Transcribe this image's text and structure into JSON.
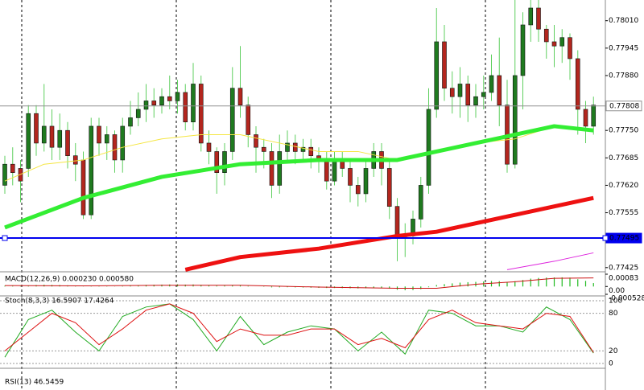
{
  "chart_data": [
    {
      "type": "candlestick",
      "bull_color": "#1f7a1f",
      "bear_color": "#b3261e",
      "wick_color": "#5fcf5f",
      "open": [
        0.7762,
        0.7767,
        0.7766,
        0.7766,
        0.7779,
        0.7772,
        0.7776,
        0.7771,
        0.7775,
        0.7769,
        0.7768,
        0.7755,
        0.7776,
        0.7772,
        0.7774,
        0.7768,
        0.7776,
        0.7778,
        0.778,
        0.7782,
        0.7781,
        0.7783,
        0.7782,
        0.7784,
        0.7777,
        0.7786,
        0.7772,
        0.777,
        0.7765,
        0.777,
        0.7785,
        0.7781,
        0.7774,
        0.7771,
        0.777,
        0.7762,
        0.777,
        0.7772,
        0.777,
        0.7771,
        0.7769,
        0.7768,
        0.7763,
        0.7768,
        0.7766,
        0.7762,
        0.776,
        0.7766,
        0.777,
        0.7766,
        0.7757,
        0.775,
        0.775,
        0.7754,
        0.7762,
        0.778,
        0.7796,
        0.7785,
        0.7783,
        0.7786,
        0.7781,
        0.7783,
        0.7784,
        0.7788,
        0.7781,
        0.7767,
        0.7788,
        0.78,
        0.7804,
        0.7799,
        0.7796,
        0.7795,
        0.7797,
        0.7792,
        0.778,
        0.7776
      ],
      "high": [
        0.7769,
        0.7771,
        0.7768,
        0.7781,
        0.7781,
        0.7786,
        0.778,
        0.7779,
        0.7777,
        0.7772,
        0.777,
        0.7778,
        0.7778,
        0.7776,
        0.7775,
        0.7778,
        0.7782,
        0.7784,
        0.7786,
        0.7785,
        0.7785,
        0.7788,
        0.7787,
        0.7786,
        0.7791,
        0.7788,
        0.7775,
        0.7771,
        0.7772,
        0.779,
        0.7795,
        0.7783,
        0.7776,
        0.7773,
        0.7772,
        0.7774,
        0.7775,
        0.7774,
        0.7773,
        0.7773,
        0.7771,
        0.777,
        0.777,
        0.777,
        0.7768,
        0.7764,
        0.7768,
        0.7772,
        0.7772,
        0.7768,
        0.7759,
        0.7753,
        0.7756,
        0.7764,
        0.7785,
        0.7804,
        0.78,
        0.7789,
        0.779,
        0.7788,
        0.7786,
        0.7788,
        0.7793,
        0.7797,
        0.7787,
        0.7806,
        0.7803,
        0.7806,
        0.7806,
        0.78,
        0.78,
        0.7799,
        0.7798,
        0.7794,
        0.7782,
        0.7783
      ],
      "low": [
        0.776,
        0.7762,
        0.7758,
        0.7764,
        0.7769,
        0.777,
        0.7768,
        0.7768,
        0.7766,
        0.7763,
        0.7754,
        0.7754,
        0.7769,
        0.7768,
        0.7765,
        0.7765,
        0.7774,
        0.7776,
        0.7777,
        0.7778,
        0.7779,
        0.778,
        0.7779,
        0.7775,
        0.7775,
        0.777,
        0.7767,
        0.776,
        0.7762,
        0.7768,
        0.7778,
        0.7771,
        0.7765,
        0.7766,
        0.7759,
        0.776,
        0.7768,
        0.7767,
        0.7768,
        0.7766,
        0.7765,
        0.7761,
        0.7762,
        0.7764,
        0.7758,
        0.7757,
        0.7758,
        0.7764,
        0.7762,
        0.7754,
        0.7744,
        0.7745,
        0.7748,
        0.7752,
        0.776,
        0.7778,
        0.7782,
        0.7779,
        0.7778,
        0.7777,
        0.7778,
        0.778,
        0.7782,
        0.7776,
        0.7765,
        0.7766,
        0.778,
        0.7796,
        0.7796,
        0.7792,
        0.779,
        0.7791,
        0.7787,
        0.7774,
        0.7772,
        0.7774
      ],
      "close": [
        0.7767,
        0.7765,
        0.7763,
        0.7779,
        0.7772,
        0.7776,
        0.7771,
        0.7775,
        0.7769,
        0.7767,
        0.7755,
        0.7776,
        0.7772,
        0.7774,
        0.7768,
        0.7776,
        0.7778,
        0.778,
        0.7782,
        0.7781,
        0.7783,
        0.7782,
        0.7784,
        0.7777,
        0.7786,
        0.7772,
        0.777,
        0.7765,
        0.777,
        0.7785,
        0.7781,
        0.7774,
        0.7771,
        0.777,
        0.7762,
        0.777,
        0.7772,
        0.777,
        0.7771,
        0.7769,
        0.7768,
        0.7763,
        0.7768,
        0.7766,
        0.7762,
        0.776,
        0.7766,
        0.777,
        0.7766,
        0.7757,
        0.775,
        0.775,
        0.7754,
        0.7762,
        0.778,
        0.7796,
        0.7785,
        0.7783,
        0.7786,
        0.7781,
        0.7783,
        0.7784,
        0.7788,
        0.7781,
        0.7767,
        0.7788,
        0.78,
        0.7804,
        0.7799,
        0.7796,
        0.7795,
        0.7797,
        0.7792,
        0.778,
        0.7776,
        0.7781
      ],
      "series": [
        {
          "color": "#f5e642",
          "width": 1,
          "x": [
            0,
            5,
            10,
            15,
            20,
            25,
            30,
            35,
            40,
            45,
            50,
            55,
            60,
            65,
            70,
            75
          ],
          "values": [
            0.7763,
            0.7767,
            0.7768,
            0.7771,
            0.7773,
            0.7774,
            0.7774,
            0.7772,
            0.777,
            0.777,
            0.7768,
            0.777,
            0.7772,
            0.7773,
            0.7776,
            0.7775
          ]
        },
        {
          "color": "#33ee33",
          "width": 5,
          "x": [
            0,
            10,
            20,
            30,
            40,
            50,
            55,
            60,
            65,
            70,
            75
          ],
          "values": [
            0.7752,
            0.7759,
            0.7764,
            0.7767,
            0.7768,
            0.7768,
            0.777,
            0.7772,
            0.7774,
            0.7776,
            0.7775
          ]
        },
        {
          "color": "#ee1111",
          "width": 5,
          "x": [
            23,
            30,
            40,
            50,
            55,
            60,
            65,
            70,
            75
          ],
          "values": [
            0.7742,
            0.7745,
            0.7747,
            0.775,
            0.7751,
            0.7753,
            0.7755,
            0.7757,
            0.7759
          ]
        },
        {
          "color": "#dd22dd",
          "width": 1,
          "x": [
            64,
            70,
            75
          ],
          "values": [
            0.7742,
            0.7744,
            0.7746
          ]
        }
      ],
      "hlines": [
        {
          "value": 0.77808,
          "label": "0.77808",
          "color": "#909090"
        },
        {
          "value": 0.77495,
          "label": "0.77495",
          "color": "#0000ee"
        }
      ],
      "ylim": [
        0.77417,
        0.78059
      ],
      "yticks": [
        {
          "value": 0.7801,
          "label": "0.78010"
        },
        {
          "value": 0.77945,
          "label": "0.77945"
        },
        {
          "value": 0.7788,
          "label": "0.77880"
        },
        {
          "value": 0.7775,
          "label": "0.77750"
        },
        {
          "value": 0.77685,
          "label": "0.77685"
        },
        {
          "value": 0.7762,
          "label": "0.77620"
        },
        {
          "value": 0.77555,
          "label": "0.77555"
        },
        {
          "value": 0.77425,
          "label": "0.77425"
        }
      ]
    },
    {
      "type": "macd",
      "title": "MACD(12,26,9) 0.000230 0.000580",
      "color": "#22bb22",
      "signal_color": "#cc1111",
      "values": [
        5e-05,
        4e-05,
        3e-05,
        6e-05,
        0.0001,
        0.00012,
        0.00011,
        0.0001,
        8e-05,
        6e-05,
        1e-05,
        2e-05,
        3e-05,
        2e-05,
        1e-05,
        3e-05,
        6e-05,
        9e-05,
        0.00011,
        0.00012,
        0.00013,
        0.00014,
        0.00015,
        0.00013,
        0.00014,
        0.00011,
        8e-05,
        5e-05,
        6e-05,
        8e-05,
        7e-05,
        3e-05,
        0,
        -2e-05,
        -6e-05,
        -6e-05,
        -5e-05,
        -6e-05,
        -7e-05,
        -8e-05,
        -9e-05,
        -0.0001,
        -0.0001,
        -0.00011,
        -0.00012,
        -0.00013,
        -0.00012,
        -0.00011,
        -0.00012,
        -0.00015,
        -0.00022,
        -0.00025,
        -0.00024,
        -0.00018,
        -5e-05,
        0.0001,
        0.00016,
        0.00021,
        0.00026,
        0.00029,
        0.00031,
        0.00034,
        0.00037,
        0.00036,
        0.0003,
        0.00036,
        0.00044,
        0.00053,
        0.00058,
        0.0006,
        0.00061,
        0.00062,
        0.0006,
        0.00049,
        0.00038,
        0.00023
      ],
      "signal": {
        "x": [
          0,
          10,
          20,
          30,
          40,
          50,
          55,
          60,
          65,
          70,
          75
        ],
        "values": [
          6e-05,
          4e-05,
          8e-05,
          8e-05,
          -4e-05,
          -0.00012,
          -0.00012,
          0.00015,
          0.00032,
          0.00055,
          0.00058
        ]
      },
      "ylim": [
        -0.000528,
        0.00083
      ],
      "yticks": [
        {
          "value": 0.00083,
          "label": "0.00083"
        },
        {
          "value": 0,
          "label": "0.00"
        },
        {
          "value": -0.000528,
          "label": "-0.000528"
        }
      ]
    },
    {
      "type": "line",
      "title": "Stoch(8,3,3) 16.5907 17.4264",
      "x": [
        0,
        3,
        6,
        9,
        12,
        15,
        18,
        21,
        24,
        27,
        30,
        33,
        36,
        39,
        42,
        45,
        48,
        51,
        54,
        57,
        60,
        63,
        66,
        69,
        72,
        75
      ],
      "series": [
        {
          "color": "#22aa22",
          "values": [
            10,
            70,
            85,
            50,
            20,
            75,
            90,
            95,
            70,
            20,
            75,
            30,
            50,
            60,
            55,
            20,
            50,
            15,
            85,
            80,
            60,
            60,
            50,
            90,
            70,
            16.5907
          ]
        },
        {
          "color": "#dd1111",
          "values": [
            20,
            50,
            80,
            65,
            30,
            55,
            85,
            95,
            80,
            35,
            55,
            45,
            45,
            55,
            55,
            30,
            40,
            25,
            70,
            85,
            65,
            60,
            55,
            80,
            75,
            17.4264
          ]
        }
      ],
      "ylim": [
        0,
        100
      ],
      "yticks": [
        100,
        80,
        20,
        0
      ]
    },
    {
      "type": "line",
      "title": "RSI(13) 46.5459"
    }
  ]
}
